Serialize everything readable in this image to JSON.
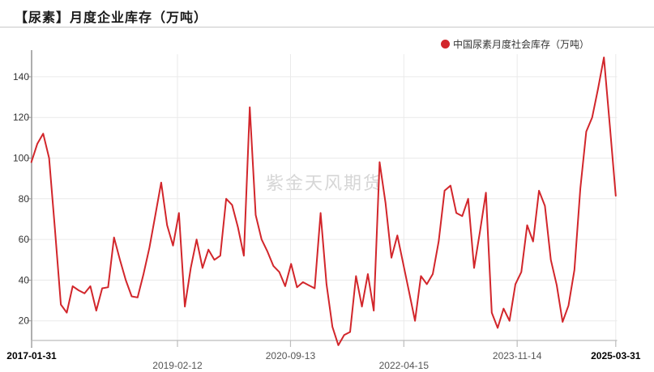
{
  "page": {
    "title": "【尿素】月度企业库存（万吨）",
    "watermark": "紫金天风期货"
  },
  "legend": {
    "label": "中国尿素月度社会库存（万吨）"
  },
  "chart_data": {
    "type": "line",
    "title": "【尿素】月度企业库存（万吨）",
    "legend_position": "top-right",
    "grid": true,
    "x_axis": {
      "tick_labels": [
        "2017-01-31",
        "2019-02-12",
        "2020-09-13",
        "2022-04-15",
        "2023-11-14",
        "2025-03-31"
      ],
      "tick_indices": [
        0,
        24.75,
        43.9,
        63.1,
        82.3,
        99
      ],
      "tick_rows": [
        0,
        1,
        0,
        1,
        0,
        0
      ],
      "tick_bold": [
        true,
        false,
        false,
        false,
        false,
        true
      ]
    },
    "y_axis": {
      "ticks": [
        20,
        40,
        60,
        80,
        100,
        120,
        140
      ],
      "range": [
        5,
        152
      ]
    },
    "series": [
      {
        "name": "中国尿素月度社会库存（万吨）",
        "color": "#d2262b",
        "values": [
          98,
          107,
          112,
          100,
          65,
          28,
          24,
          37,
          35,
          33.5,
          37,
          25,
          36,
          36.5,
          61,
          50,
          40,
          32,
          31.5,
          43,
          56,
          72,
          88,
          67,
          57,
          73,
          27,
          46,
          60,
          46,
          55,
          50,
          52,
          80,
          77,
          66,
          52,
          125,
          72,
          60,
          54,
          47,
          44,
          37,
          48,
          36.5,
          39,
          37.5,
          36,
          73,
          38,
          17,
          8,
          13,
          14.5,
          42,
          27,
          43,
          25,
          98,
          78,
          51,
          62,
          48,
          34,
          20,
          42,
          38,
          43,
          59,
          84,
          86.5,
          73,
          71.5,
          80,
          46,
          64,
          83,
          24,
          16.5,
          26,
          20,
          38,
          44,
          67,
          59,
          84,
          76.5,
          50,
          37.5,
          19.5,
          27.5,
          45,
          85,
          113,
          120,
          134,
          149.5,
          116,
          81.5
        ]
      }
    ]
  },
  "colors": {
    "line": "#d2262b",
    "grid": "#eaeaea",
    "y_axis_line": "#999999",
    "x_axis_line": "#bcbcbc",
    "y_tick_label": "#333333",
    "x_tick_label": "#555555",
    "x_tick_label_bold": "#000000",
    "legend_marker": "#d2262b"
  }
}
